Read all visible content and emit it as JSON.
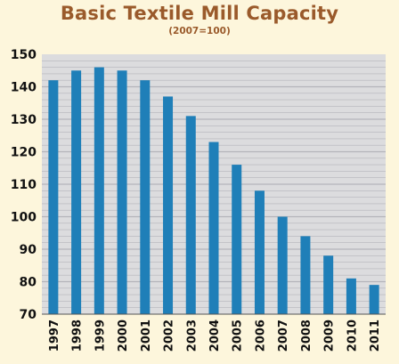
{
  "chart_data": {
    "type": "bar",
    "title": "Basic Textile Mill Capacity",
    "subtitle": "(2007=100)",
    "xlabel": "",
    "ylabel": "",
    "categories": [
      "1997",
      "1998",
      "1999",
      "2000",
      "2001",
      "2002",
      "2003",
      "2004",
      "2005",
      "2006",
      "2007",
      "2008",
      "2009",
      "2010",
      "2011"
    ],
    "values": [
      142,
      145,
      146,
      145,
      142,
      137,
      131,
      123,
      116,
      108,
      100,
      94,
      88,
      81,
      79
    ],
    "ylim": [
      70,
      150
    ],
    "yticks": [
      70,
      80,
      90,
      100,
      110,
      120,
      130,
      140,
      150
    ],
    "grid": true,
    "colors": {
      "bar": "#1f7fb8",
      "plot_bg": "#dcdcde",
      "grid": "#b4b4ba",
      "title": "#9a5a2b",
      "page_bg": "#fdf6dc"
    }
  }
}
